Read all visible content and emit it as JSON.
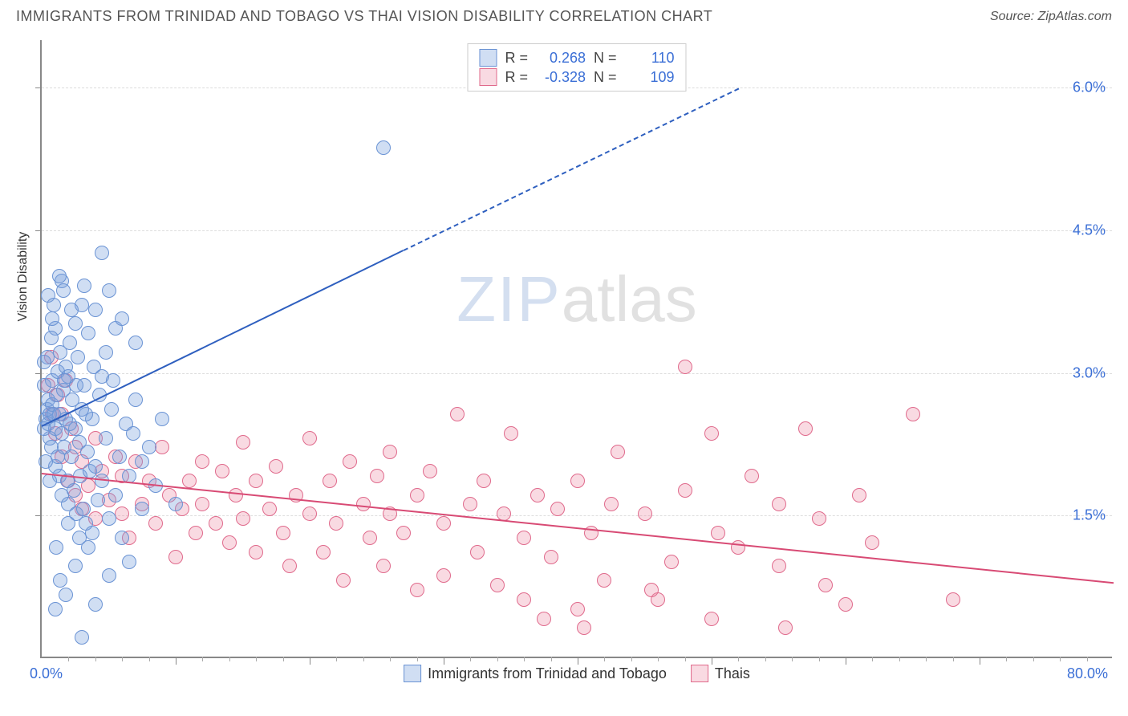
{
  "header": {
    "title": "IMMIGRANTS FROM TRINIDAD AND TOBAGO VS THAI VISION DISABILITY CORRELATION CHART",
    "source": "Source: ZipAtlas.com"
  },
  "chart": {
    "type": "scatter",
    "yaxis_title": "Vision Disability",
    "xlim": [
      0,
      80
    ],
    "ylim": [
      0,
      6.5
    ],
    "x_min_label": "0.0%",
    "x_max_label": "80.0%",
    "y_ticks": [
      {
        "v": 1.5,
        "label": "1.5%"
      },
      {
        "v": 3.0,
        "label": "3.0%"
      },
      {
        "v": 4.5,
        "label": "4.5%"
      },
      {
        "v": 6.0,
        "label": "6.0%"
      }
    ],
    "x_major_ticks": [
      10,
      20,
      30,
      40,
      50,
      60,
      70
    ],
    "x_minor_ticks": [
      2,
      4,
      6,
      8,
      12,
      14,
      16,
      18,
      22,
      24,
      26,
      28,
      32,
      34,
      36,
      38,
      42,
      44,
      46,
      48,
      52,
      54,
      56,
      58,
      62,
      64,
      66,
      68,
      72,
      74,
      76,
      78
    ],
    "grid_color": "#dddddd",
    "background_color": "#ffffff",
    "marker_radius": 9,
    "series": {
      "a": {
        "label": "Immigrants from Trinidad and Tobago",
        "fill": "rgba(120,160,220,0.35)",
        "stroke": "#6a93d4",
        "trend_color": "#2e5fbf",
        "trend": {
          "x1": 0,
          "y1": 2.45,
          "x2": 27,
          "y2": 4.3,
          "x2_ext": 52,
          "y2_ext": 6.0
        },
        "R": "0.268",
        "N": "110",
        "points": [
          [
            0.3,
            2.5
          ],
          [
            0.4,
            2.6
          ],
          [
            0.5,
            2.45
          ],
          [
            0.5,
            2.7
          ],
          [
            0.6,
            2.3
          ],
          [
            0.6,
            2.55
          ],
          [
            0.7,
            2.2
          ],
          [
            0.8,
            2.9
          ],
          [
            0.8,
            2.65
          ],
          [
            1.0,
            2.4
          ],
          [
            1.0,
            2.0
          ],
          [
            1.1,
            2.75
          ],
          [
            1.2,
            3.0
          ],
          [
            1.2,
            2.1
          ],
          [
            1.3,
            1.9
          ],
          [
            1.3,
            2.55
          ],
          [
            1.4,
            3.2
          ],
          [
            1.5,
            2.35
          ],
          [
            1.5,
            1.7
          ],
          [
            1.6,
            2.8
          ],
          [
            1.7,
            2.2
          ],
          [
            1.8,
            3.05
          ],
          [
            1.8,
            2.5
          ],
          [
            1.9,
            1.85
          ],
          [
            2.0,
            2.95
          ],
          [
            2.0,
            1.6
          ],
          [
            2.1,
            3.3
          ],
          [
            2.2,
            2.1
          ],
          [
            2.3,
            2.7
          ],
          [
            2.4,
            1.75
          ],
          [
            2.5,
            3.5
          ],
          [
            2.5,
            2.4
          ],
          [
            2.6,
            1.5
          ],
          [
            2.7,
            3.15
          ],
          [
            2.8,
            2.25
          ],
          [
            2.9,
            1.9
          ],
          [
            3.0,
            2.6
          ],
          [
            3.0,
            3.7
          ],
          [
            3.1,
            1.55
          ],
          [
            3.2,
            2.85
          ],
          [
            3.3,
            1.4
          ],
          [
            3.4,
            2.15
          ],
          [
            3.5,
            3.4
          ],
          [
            3.6,
            1.95
          ],
          [
            3.8,
            2.5
          ],
          [
            3.8,
            1.3
          ],
          [
            4.0,
            3.65
          ],
          [
            4.0,
            2.0
          ],
          [
            4.2,
            1.65
          ],
          [
            4.3,
            2.75
          ],
          [
            4.5,
            4.25
          ],
          [
            4.5,
            1.85
          ],
          [
            4.8,
            2.3
          ],
          [
            5.0,
            3.85
          ],
          [
            5.0,
            1.45
          ],
          [
            5.2,
            2.6
          ],
          [
            5.5,
            1.7
          ],
          [
            5.5,
            3.45
          ],
          [
            5.8,
            2.1
          ],
          [
            6.0,
            3.55
          ],
          [
            6.0,
            1.25
          ],
          [
            6.3,
            2.45
          ],
          [
            6.5,
            1.9
          ],
          [
            7.0,
            2.7
          ],
          [
            7.0,
            3.3
          ],
          [
            7.5,
            1.55
          ],
          [
            8.0,
            2.2
          ],
          [
            8.5,
            1.8
          ],
          [
            9.0,
            2.5
          ],
          [
            10.0,
            1.6
          ],
          [
            0.5,
            3.8
          ],
          [
            1.0,
            3.45
          ],
          [
            1.5,
            3.95
          ],
          [
            0.7,
            3.35
          ],
          [
            2.0,
            1.4
          ],
          [
            2.5,
            0.95
          ],
          [
            3.5,
            1.15
          ],
          [
            4.0,
            0.55
          ],
          [
            1.0,
            0.5
          ],
          [
            3.0,
            0.2
          ],
          [
            1.8,
            0.65
          ],
          [
            2.8,
            1.25
          ],
          [
            5.0,
            0.85
          ],
          [
            0.8,
            3.55
          ],
          [
            1.3,
            4.0
          ],
          [
            0.4,
            3.15
          ],
          [
            6.5,
            1.0
          ],
          [
            7.5,
            2.05
          ],
          [
            4.5,
            2.95
          ],
          [
            3.2,
            3.9
          ],
          [
            2.2,
            3.65
          ],
          [
            1.6,
            3.85
          ],
          [
            4.8,
            3.2
          ],
          [
            0.6,
            1.85
          ],
          [
            0.9,
            3.7
          ],
          [
            1.1,
            1.15
          ],
          [
            1.4,
            0.8
          ],
          [
            0.3,
            2.05
          ],
          [
            0.2,
            2.85
          ],
          [
            0.15,
            2.4
          ],
          [
            0.2,
            3.1
          ],
          [
            0.9,
            2.55
          ],
          [
            1.7,
            2.9
          ],
          [
            2.1,
            2.45
          ],
          [
            2.6,
            2.85
          ],
          [
            3.3,
            2.55
          ],
          [
            3.9,
            3.05
          ],
          [
            5.3,
            2.9
          ],
          [
            6.8,
            2.35
          ],
          [
            25.5,
            5.35
          ]
        ]
      },
      "b": {
        "label": "Thais",
        "fill": "rgba(235,140,165,0.32)",
        "stroke": "#e06a8c",
        "trend_color": "#d84a74",
        "trend": {
          "x1": 0,
          "y1": 1.95,
          "x2": 80,
          "y2": 0.8
        },
        "R": "-0.328",
        "N": "109",
        "points": [
          [
            0.5,
            2.85
          ],
          [
            0.7,
            3.15
          ],
          [
            0.8,
            2.55
          ],
          [
            1.0,
            2.35
          ],
          [
            1.2,
            2.75
          ],
          [
            1.5,
            2.1
          ],
          [
            1.5,
            2.55
          ],
          [
            1.8,
            2.9
          ],
          [
            2.0,
            1.85
          ],
          [
            2.2,
            2.4
          ],
          [
            2.5,
            1.7
          ],
          [
            2.5,
            2.2
          ],
          [
            3.0,
            1.55
          ],
          [
            3.0,
            2.05
          ],
          [
            3.5,
            1.8
          ],
          [
            4.0,
            1.45
          ],
          [
            4.0,
            2.3
          ],
          [
            4.5,
            1.95
          ],
          [
            5.0,
            1.65
          ],
          [
            5.5,
            2.1
          ],
          [
            6.0,
            1.5
          ],
          [
            6.0,
            1.9
          ],
          [
            6.5,
            1.25
          ],
          [
            7.0,
            2.05
          ],
          [
            7.5,
            1.6
          ],
          [
            8.0,
            1.85
          ],
          [
            8.5,
            1.4
          ],
          [
            9.0,
            2.2
          ],
          [
            9.5,
            1.7
          ],
          [
            10.0,
            1.05
          ],
          [
            10.5,
            1.55
          ],
          [
            11.0,
            1.85
          ],
          [
            11.5,
            1.3
          ],
          [
            12.0,
            2.05
          ],
          [
            12.0,
            1.6
          ],
          [
            13.0,
            1.4
          ],
          [
            13.5,
            1.95
          ],
          [
            14.0,
            1.2
          ],
          [
            14.5,
            1.7
          ],
          [
            15.0,
            1.45
          ],
          [
            15.0,
            2.25
          ],
          [
            16.0,
            1.85
          ],
          [
            16.0,
            1.1
          ],
          [
            17.0,
            1.55
          ],
          [
            17.5,
            2.0
          ],
          [
            18.0,
            1.3
          ],
          [
            18.5,
            0.95
          ],
          [
            19.0,
            1.7
          ],
          [
            20.0,
            1.5
          ],
          [
            20.0,
            2.3
          ],
          [
            21.0,
            1.1
          ],
          [
            21.5,
            1.85
          ],
          [
            22.0,
            1.4
          ],
          [
            22.5,
            0.8
          ],
          [
            23.0,
            2.05
          ],
          [
            24.0,
            1.6
          ],
          [
            24.5,
            1.25
          ],
          [
            25.0,
            1.9
          ],
          [
            25.5,
            0.95
          ],
          [
            26.0,
            1.5
          ],
          [
            26.0,
            2.15
          ],
          [
            27.0,
            1.3
          ],
          [
            28.0,
            1.7
          ],
          [
            28.0,
            0.7
          ],
          [
            29.0,
            1.95
          ],
          [
            30.0,
            1.4
          ],
          [
            30.0,
            0.85
          ],
          [
            31.0,
            2.55
          ],
          [
            32.0,
            1.6
          ],
          [
            32.5,
            1.1
          ],
          [
            33.0,
            1.85
          ],
          [
            34.0,
            0.75
          ],
          [
            34.5,
            1.5
          ],
          [
            35.0,
            2.35
          ],
          [
            36.0,
            1.25
          ],
          [
            36.0,
            0.6
          ],
          [
            37.0,
            1.7
          ],
          [
            38.0,
            1.05
          ],
          [
            38.5,
            1.55
          ],
          [
            40.0,
            0.5
          ],
          [
            40.0,
            1.85
          ],
          [
            41.0,
            1.3
          ],
          [
            42.0,
            0.8
          ],
          [
            43.0,
            2.15
          ],
          [
            45.0,
            1.5
          ],
          [
            46.0,
            0.6
          ],
          [
            47.0,
            1.0
          ],
          [
            48.0,
            3.05
          ],
          [
            48.0,
            1.75
          ],
          [
            50.0,
            0.4
          ],
          [
            50.0,
            2.35
          ],
          [
            52.0,
            1.15
          ],
          [
            53.0,
            1.9
          ],
          [
            55.0,
            0.95
          ],
          [
            57.0,
            2.4
          ],
          [
            58.0,
            1.45
          ],
          [
            60.0,
            0.55
          ],
          [
            61.0,
            1.7
          ],
          [
            62.0,
            1.2
          ],
          [
            58.5,
            0.75
          ],
          [
            55.0,
            1.6
          ],
          [
            50.5,
            1.3
          ],
          [
            45.5,
            0.7
          ],
          [
            40.5,
            0.3
          ],
          [
            42.5,
            1.6
          ],
          [
            37.5,
            0.4
          ],
          [
            65.0,
            2.55
          ],
          [
            68.0,
            0.6
          ],
          [
            55.5,
            0.3
          ]
        ]
      }
    },
    "stats_legend": [
      {
        "series": "a",
        "R_label": "R =",
        "N_label": "N ="
      },
      {
        "series": "b",
        "R_label": "R =",
        "N_label": "N ="
      }
    ],
    "watermark": {
      "part1": "ZIP",
      "part2": "atlas"
    }
  }
}
